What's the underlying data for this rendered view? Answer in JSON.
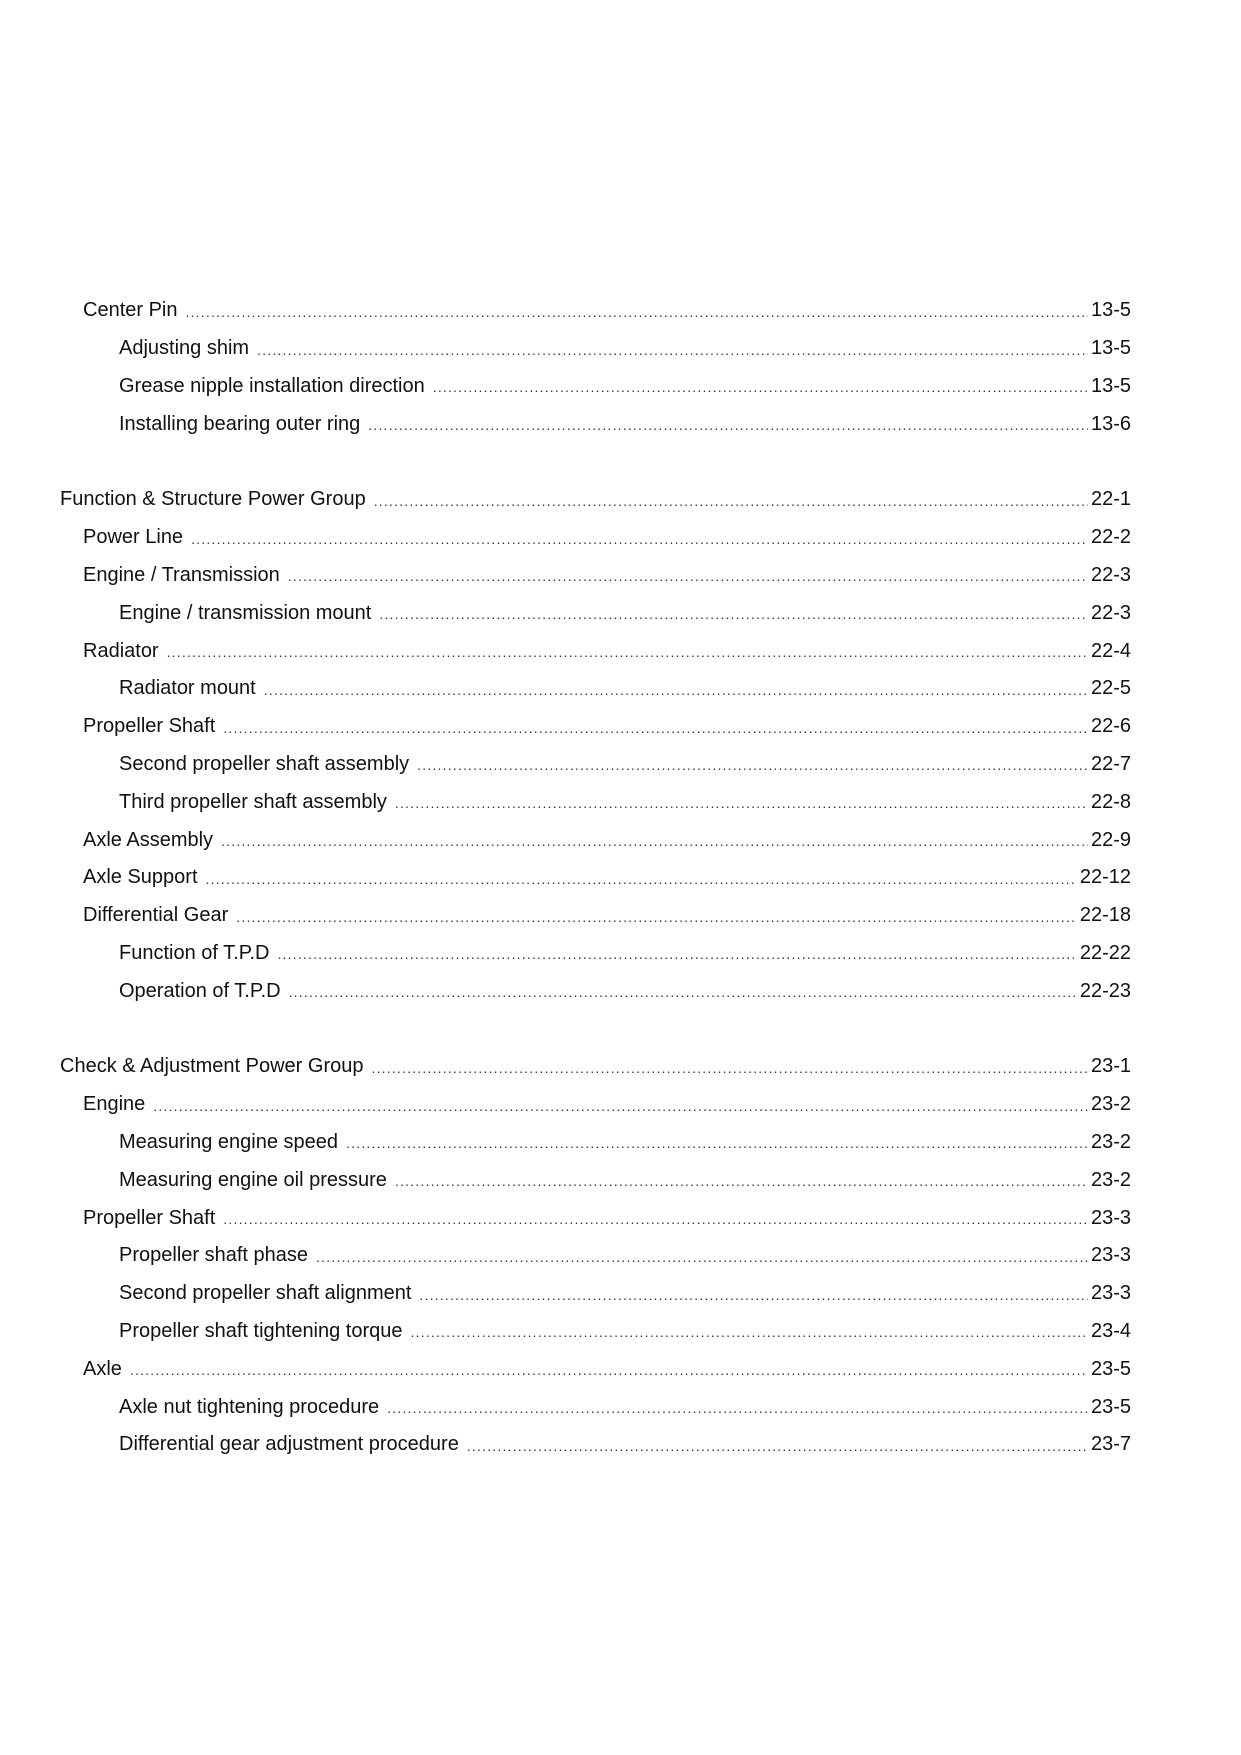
{
  "toc": [
    {
      "title": "Center Pin",
      "page": "13-5",
      "level": 1
    },
    {
      "title": "Adjusting shim",
      "page": "13-5",
      "level": 2
    },
    {
      "title": "Grease nipple installation direction",
      "page": "13-5",
      "level": 2
    },
    {
      "title": "Installing bearing outer ring",
      "page": "13-6",
      "level": 2
    },
    null,
    {
      "title": "Function & Structure Power Group",
      "page": "22-1",
      "level": 0
    },
    {
      "title": "Power Line",
      "page": "22-2",
      "level": 1
    },
    {
      "title": "Engine / Transmission",
      "page": "22-3",
      "level": 1
    },
    {
      "title": "Engine / transmission mount",
      "page": "22-3",
      "level": 2
    },
    {
      "title": "Radiator",
      "page": "22-4",
      "level": 1
    },
    {
      "title": "Radiator mount",
      "page": "22-5",
      "level": 2
    },
    {
      "title": "Propeller Shaft",
      "page": "22-6",
      "level": 1
    },
    {
      "title": "Second propeller shaft assembly",
      "page": "22-7",
      "level": 2
    },
    {
      "title": "Third propeller shaft assembly",
      "page": "22-8",
      "level": 2
    },
    {
      "title": "Axle Assembly",
      "page": "22-9",
      "level": 1
    },
    {
      "title": "Axle Support",
      "page": "22-12",
      "level": 1
    },
    {
      "title": "Differential Gear",
      "page": "22-18",
      "level": 1
    },
    {
      "title": "Function of T.P.D",
      "page": "22-22",
      "level": 2
    },
    {
      "title": "Operation of T.P.D",
      "page": "22-23",
      "level": 2
    },
    null,
    {
      "title": "Check & Adjustment Power Group",
      "page": "23-1",
      "level": 0
    },
    {
      "title": "Engine",
      "page": "23-2",
      "level": 1
    },
    {
      "title": "Measuring engine speed",
      "page": "23-2",
      "level": 2
    },
    {
      "title": "Measuring engine oil pressure",
      "page": "23-2",
      "level": 2
    },
    {
      "title": "Propeller Shaft",
      "page": "23-3",
      "level": 1
    },
    {
      "title": "Propeller shaft phase",
      "page": "23-3",
      "level": 2
    },
    {
      "title": "Second propeller shaft alignment",
      "page": "23-3",
      "level": 2
    },
    {
      "title": "Propeller shaft tightening torque",
      "page": "23-4",
      "level": 2
    },
    {
      "title": "Axle",
      "page": "23-5",
      "level": 1
    },
    {
      "title": "Axle nut tightening procedure",
      "page": "23-5",
      "level": 2
    },
    {
      "title": "Differential gear adjustment procedure",
      "page": "23-7",
      "level": 2
    }
  ]
}
